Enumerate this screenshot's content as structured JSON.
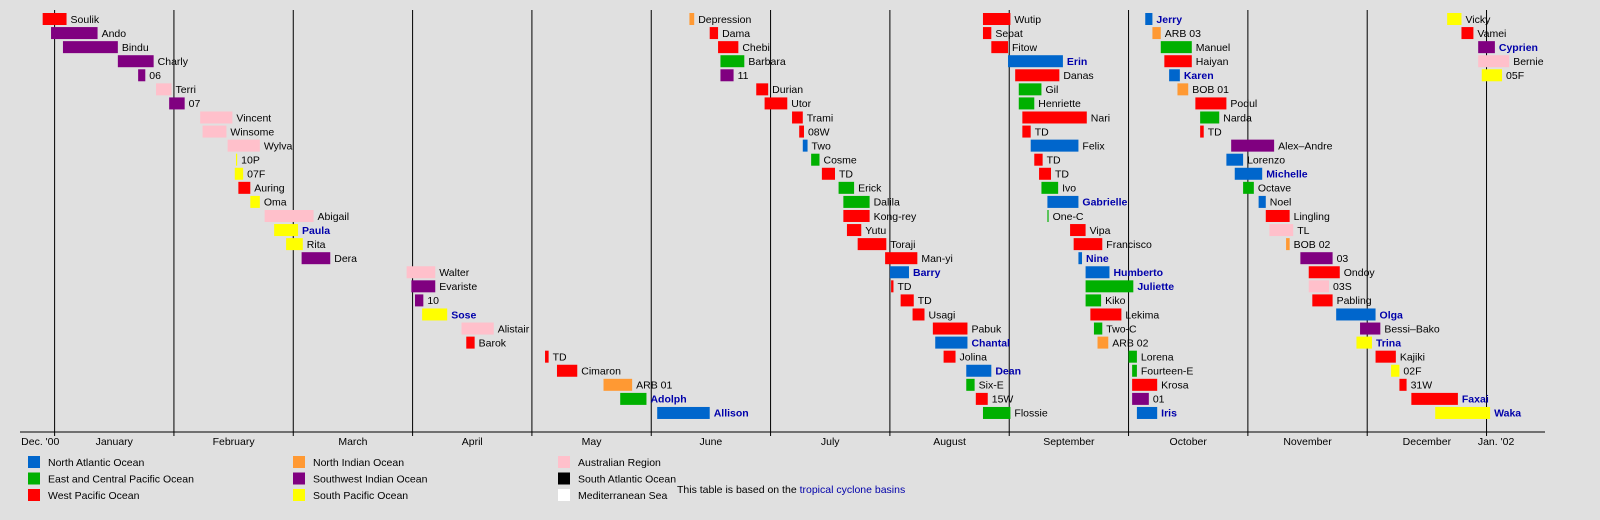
{
  "chart_data": {
    "type": "timeline",
    "xlim": [
      -0.29,
      12.49
    ],
    "month_lines": [
      0,
      1,
      2,
      3,
      4,
      5,
      6,
      7,
      8,
      9,
      10,
      11,
      12
    ],
    "xticks": [
      {
        "value": -0.12,
        "label": "Dec. '00"
      },
      {
        "value": 0.5,
        "label": "January"
      },
      {
        "value": 1.5,
        "label": "February"
      },
      {
        "value": 2.5,
        "label": "March"
      },
      {
        "value": 3.5,
        "label": "April"
      },
      {
        "value": 4.5,
        "label": "May"
      },
      {
        "value": 5.5,
        "label": "June"
      },
      {
        "value": 6.5,
        "label": "July"
      },
      {
        "value": 7.5,
        "label": "August"
      },
      {
        "value": 8.5,
        "label": "September"
      },
      {
        "value": 9.5,
        "label": "October"
      },
      {
        "value": 10.5,
        "label": "November"
      },
      {
        "value": 11.5,
        "label": "December"
      },
      {
        "value": 12.08,
        "label": "Jan. '02"
      }
    ],
    "basins": [
      {
        "name": "North Atlantic Ocean",
        "color": "#0066cc"
      },
      {
        "name": "East and Central Pacific Ocean",
        "color": "#00b000"
      },
      {
        "name": "West Pacific Ocean",
        "color": "#ff0000"
      },
      {
        "name": "North Indian Ocean",
        "color": "#ff9933"
      },
      {
        "name": "Southwest Indian Ocean",
        "color": "#800080"
      },
      {
        "name": "South Pacific Ocean",
        "color": "#ffff00"
      },
      {
        "name": "Australian Region",
        "color": "#ffc0cb"
      },
      {
        "name": "South Atlantic Ocean",
        "color": "#000000"
      },
      {
        "name": "Mediterranean Sea",
        "color": "#ffffff"
      }
    ],
    "footer": "This table is based on the",
    "footer_link": "tropical cyclone basins",
    "storms": [
      {
        "name": "Soulik",
        "color": "#ff0000",
        "start": -0.1,
        "end": 0.1
      },
      {
        "name": "Ando",
        "color": "#800080",
        "start": -0.03,
        "end": 0.36
      },
      {
        "name": "Bindu",
        "color": "#800080",
        "start": 0.07,
        "end": 0.53
      },
      {
        "name": "Charly",
        "color": "#800080",
        "start": 0.53,
        "end": 0.83
      },
      {
        "name": "06",
        "color": "#800080",
        "start": 0.7,
        "end": 0.76
      },
      {
        "name": "Terri",
        "color": "#ffc0cb",
        "start": 0.85,
        "end": 0.98
      },
      {
        "name": "07",
        "color": "#800080",
        "start": 0.96,
        "end": 1.09
      },
      {
        "name": "Vincent",
        "color": "#ffc0cb",
        "start": 1.22,
        "end": 1.49
      },
      {
        "name": "Winsome",
        "color": "#ffc0cb",
        "start": 1.24,
        "end": 1.44
      },
      {
        "name": "Wylva",
        "color": "#ffc0cb",
        "start": 1.45,
        "end": 1.72
      },
      {
        "name": "10P",
        "color": "#ffff00",
        "start": 1.52,
        "end": 1.53
      },
      {
        "name": "07F",
        "color": "#ffff00",
        "start": 1.51,
        "end": 1.58
      },
      {
        "name": "Auring",
        "color": "#ff0000",
        "start": 1.54,
        "end": 1.64
      },
      {
        "name": "Oma",
        "color": "#ffff00",
        "start": 1.64,
        "end": 1.72
      },
      {
        "name": "Abigail",
        "color": "#ffc0cb",
        "start": 1.76,
        "end": 2.17
      },
      {
        "name": "Paula",
        "color": "#ffff00",
        "start": 1.84,
        "end": 2.04,
        "linked": true
      },
      {
        "name": "Rita",
        "color": "#ffff00",
        "start": 1.94,
        "end": 2.08
      },
      {
        "name": "Dera",
        "color": "#800080",
        "start": 2.07,
        "end": 2.31
      },
      {
        "name": "Walter",
        "color": "#ffc0cb",
        "start": 2.95,
        "end": 3.19
      },
      {
        "name": "Evariste",
        "color": "#800080",
        "start": 2.99,
        "end": 3.19
      },
      {
        "name": "10",
        "color": "#800080",
        "start": 3.02,
        "end": 3.09
      },
      {
        "name": "Sose",
        "color": "#ffff00",
        "start": 3.08,
        "end": 3.29,
        "linked": true
      },
      {
        "name": "Alistair",
        "color": "#ffc0cb",
        "start": 3.41,
        "end": 3.68
      },
      {
        "name": "Barok",
        "color": "#ff0000",
        "start": 3.45,
        "end": 3.52
      },
      {
        "name": "TD",
        "color": "#ff0000",
        "start": 4.11,
        "end": 4.14
      },
      {
        "name": "Cimaron",
        "color": "#ff0000",
        "start": 4.21,
        "end": 4.38
      },
      {
        "name": "ARB 01",
        "color": "#ff9933",
        "start": 4.6,
        "end": 4.84
      },
      {
        "name": "Adolph",
        "color": "#00b000",
        "start": 4.74,
        "end": 4.96,
        "linked": true
      },
      {
        "name": "Allison",
        "color": "#0066cc",
        "start": 5.05,
        "end": 5.49,
        "linked": true
      },
      {
        "name": "Depression",
        "color": "#ff9933",
        "start": 5.32,
        "end": 5.36
      },
      {
        "name": "Dama",
        "color": "#ff0000",
        "start": 5.49,
        "end": 5.56
      },
      {
        "name": "Chebi",
        "color": "#ff0000",
        "start": 5.56,
        "end": 5.73
      },
      {
        "name": "Barbara",
        "color": "#00b000",
        "start": 5.58,
        "end": 5.78
      },
      {
        "name": "11",
        "color": "#800080",
        "start": 5.58,
        "end": 5.69
      },
      {
        "name": "Durian",
        "color": "#ff0000",
        "start": 5.88,
        "end": 5.98
      },
      {
        "name": "Utor",
        "color": "#ff0000",
        "start": 5.95,
        "end": 6.14
      },
      {
        "name": "Trami",
        "color": "#ff0000",
        "start": 6.18,
        "end": 6.27
      },
      {
        "name": "08W",
        "color": "#ff0000",
        "start": 6.24,
        "end": 6.28
      },
      {
        "name": "Two",
        "color": "#0066cc",
        "start": 6.27,
        "end": 6.31
      },
      {
        "name": "Cosme",
        "color": "#00b000",
        "start": 6.34,
        "end": 6.41
      },
      {
        "name": "TD",
        "color": "#ff0000",
        "start": 6.43,
        "end": 6.54
      },
      {
        "name": "Erick",
        "color": "#00b000",
        "start": 6.57,
        "end": 6.7
      },
      {
        "name": "Dalila",
        "color": "#00b000",
        "start": 6.61,
        "end": 6.83
      },
      {
        "name": "Kong-rey",
        "color": "#ff0000",
        "start": 6.61,
        "end": 6.83
      },
      {
        "name": "Yutu",
        "color": "#ff0000",
        "start": 6.64,
        "end": 6.76
      },
      {
        "name": "Toraji",
        "color": "#ff0000",
        "start": 6.73,
        "end": 6.97
      },
      {
        "name": "Man-yi",
        "color": "#ff0000",
        "start": 6.96,
        "end": 7.23
      },
      {
        "name": "Barry",
        "color": "#0066cc",
        "start": 7.0,
        "end": 7.16,
        "linked": true
      },
      {
        "name": "TD",
        "color": "#ff0000",
        "start": 7.01,
        "end": 7.03
      },
      {
        "name": "TD",
        "color": "#ff0000",
        "start": 7.09,
        "end": 7.2
      },
      {
        "name": "Usagi",
        "color": "#ff0000",
        "start": 7.19,
        "end": 7.29
      },
      {
        "name": "Pabuk",
        "color": "#ff0000",
        "start": 7.36,
        "end": 7.65
      },
      {
        "name": "Chantal",
        "color": "#0066cc",
        "start": 7.38,
        "end": 7.65,
        "linked": true
      },
      {
        "name": "Jolina",
        "color": "#ff0000",
        "start": 7.45,
        "end": 7.55
      },
      {
        "name": "Dean",
        "color": "#0066cc",
        "start": 7.64,
        "end": 7.85,
        "linked": true
      },
      {
        "name": "Six-E",
        "color": "#00b000",
        "start": 7.64,
        "end": 7.71
      },
      {
        "name": "15W",
        "color": "#ff0000",
        "start": 7.72,
        "end": 7.82
      },
      {
        "name": "Flossie",
        "color": "#00b000",
        "start": 7.78,
        "end": 8.01
      },
      {
        "name": "Wutip",
        "color": "#ff0000",
        "start": 7.78,
        "end": 8.01
      },
      {
        "name": "Sepat",
        "color": "#ff0000",
        "start": 7.78,
        "end": 7.85
      },
      {
        "name": "Fitow",
        "color": "#ff0000",
        "start": 7.85,
        "end": 7.99
      },
      {
        "name": "Erin",
        "color": "#0066cc",
        "start": 7.99,
        "end": 8.45,
        "linked": true
      },
      {
        "name": "Danas",
        "color": "#ff0000",
        "start": 8.05,
        "end": 8.42
      },
      {
        "name": "Gil",
        "color": "#00b000",
        "start": 8.08,
        "end": 8.27
      },
      {
        "name": "Henriette",
        "color": "#00b000",
        "start": 8.08,
        "end": 8.21
      },
      {
        "name": "Nari",
        "color": "#ff0000",
        "start": 8.11,
        "end": 8.65
      },
      {
        "name": "TD",
        "color": "#ff0000",
        "start": 8.11,
        "end": 8.18
      },
      {
        "name": "Felix",
        "color": "#0066cc",
        "start": 8.18,
        "end": 8.58
      },
      {
        "name": "TD",
        "color": "#ff0000",
        "start": 8.21,
        "end": 8.28
      },
      {
        "name": "TD",
        "color": "#ff0000",
        "start": 8.25,
        "end": 8.35
      },
      {
        "name": "Ivo",
        "color": "#00b000",
        "start": 8.27,
        "end": 8.41
      },
      {
        "name": "Gabrielle",
        "color": "#0066cc",
        "start": 8.32,
        "end": 8.58,
        "linked": true
      },
      {
        "name": "One-C",
        "color": "#00b000",
        "start": 8.32,
        "end": 8.33
      },
      {
        "name": "Vipa",
        "color": "#ff0000",
        "start": 8.51,
        "end": 8.64
      },
      {
        "name": "Francisco",
        "color": "#ff0000",
        "start": 8.54,
        "end": 8.78
      },
      {
        "name": "Nine",
        "color": "#0066cc",
        "start": 8.58,
        "end": 8.61,
        "linked": true
      },
      {
        "name": "Humberto",
        "color": "#0066cc",
        "start": 8.64,
        "end": 8.84,
        "linked": true
      },
      {
        "name": "Juliette",
        "color": "#00b000",
        "start": 8.64,
        "end": 9.04,
        "linked": true
      },
      {
        "name": "Kiko",
        "color": "#00b000",
        "start": 8.64,
        "end": 8.77
      },
      {
        "name": "Lekima",
        "color": "#ff0000",
        "start": 8.68,
        "end": 8.94
      },
      {
        "name": "Two-C",
        "color": "#00b000",
        "start": 8.71,
        "end": 8.78
      },
      {
        "name": "ARB 02",
        "color": "#ff9933",
        "start": 8.74,
        "end": 8.83
      },
      {
        "name": "Lorena",
        "color": "#00b000",
        "start": 9.0,
        "end": 9.07
      },
      {
        "name": "Fourteen-E",
        "color": "#00b000",
        "start": 9.03,
        "end": 9.07
      },
      {
        "name": "Krosa",
        "color": "#ff0000",
        "start": 9.03,
        "end": 9.24
      },
      {
        "name": "01",
        "color": "#800080",
        "start": 9.03,
        "end": 9.17
      },
      {
        "name": "Iris",
        "color": "#0066cc",
        "start": 9.07,
        "end": 9.24,
        "linked": true
      },
      {
        "name": "Jerry",
        "color": "#0066cc",
        "start": 9.14,
        "end": 9.2,
        "linked": true
      },
      {
        "name": "ARB 03",
        "color": "#ff9933",
        "start": 9.2,
        "end": 9.27
      },
      {
        "name": "Manuel",
        "color": "#00b000",
        "start": 9.27,
        "end": 9.53
      },
      {
        "name": "Haiyan",
        "color": "#ff0000",
        "start": 9.3,
        "end": 9.53
      },
      {
        "name": "Karen",
        "color": "#0066cc",
        "start": 9.34,
        "end": 9.43,
        "linked": true
      },
      {
        "name": "BOB 01",
        "color": "#ff9933",
        "start": 9.41,
        "end": 9.5
      },
      {
        "name": "Podul",
        "color": "#ff0000",
        "start": 9.56,
        "end": 9.82
      },
      {
        "name": "Narda",
        "color": "#00b000",
        "start": 9.6,
        "end": 9.76
      },
      {
        "name": "TD",
        "color": "#ff0000",
        "start": 9.6,
        "end": 9.63
      },
      {
        "name": "Alex–Andre",
        "color": "#800080",
        "start": 9.86,
        "end": 10.22
      },
      {
        "name": "Lorenzo",
        "color": "#0066cc",
        "start": 9.82,
        "end": 9.96
      },
      {
        "name": "Michelle",
        "color": "#0066cc",
        "start": 9.89,
        "end": 10.12,
        "linked": true
      },
      {
        "name": "Octave",
        "color": "#00b000",
        "start": 9.96,
        "end": 10.05
      },
      {
        "name": "Noel",
        "color": "#0066cc",
        "start": 10.09,
        "end": 10.15
      },
      {
        "name": "Lingling",
        "color": "#ff0000",
        "start": 10.15,
        "end": 10.35
      },
      {
        "name": "TL",
        "color": "#ffc0cb",
        "start": 10.18,
        "end": 10.38
      },
      {
        "name": "BOB 02",
        "color": "#ff9933",
        "start": 10.32,
        "end": 10.35
      },
      {
        "name": "03",
        "color": "#800080",
        "start": 10.44,
        "end": 10.71
      },
      {
        "name": "Ondoy",
        "color": "#ff0000",
        "start": 10.51,
        "end": 10.77
      },
      {
        "name": "03S",
        "color": "#ffc0cb",
        "start": 10.51,
        "end": 10.68
      },
      {
        "name": "Pabling",
        "color": "#ff0000",
        "start": 10.54,
        "end": 10.71
      },
      {
        "name": "Olga",
        "color": "#0066cc",
        "start": 10.74,
        "end": 11.07,
        "linked": true
      },
      {
        "name": "Bessi–Bako",
        "color": "#800080",
        "start": 10.94,
        "end": 11.11
      },
      {
        "name": "Trina",
        "color": "#ffff00",
        "start": 10.91,
        "end": 11.04,
        "linked": true
      },
      {
        "name": "Kajiki",
        "color": "#ff0000",
        "start": 11.07,
        "end": 11.24
      },
      {
        "name": "02F",
        "color": "#ffff00",
        "start": 11.2,
        "end": 11.27
      },
      {
        "name": "31W",
        "color": "#ff0000",
        "start": 11.27,
        "end": 11.33
      },
      {
        "name": "Faxai",
        "color": "#ff0000",
        "start": 11.37,
        "end": 11.76,
        "linked": true
      },
      {
        "name": "Waka",
        "color": "#ffff00",
        "start": 11.57,
        "end": 12.03,
        "linked": true
      },
      {
        "name": "Vicky",
        "color": "#ffff00",
        "start": 11.67,
        "end": 11.79
      },
      {
        "name": "Vamei",
        "color": "#ff0000",
        "start": 11.79,
        "end": 11.89
      },
      {
        "name": "Cyprien",
        "color": "#800080",
        "start": 11.93,
        "end": 12.07,
        "linked": true
      },
      {
        "name": "Bernie",
        "color": "#ffc0cb",
        "start": 11.93,
        "end": 12.19
      },
      {
        "name": "05F",
        "color": "#ffff00",
        "start": 11.96,
        "end": 12.13
      }
    ]
  }
}
